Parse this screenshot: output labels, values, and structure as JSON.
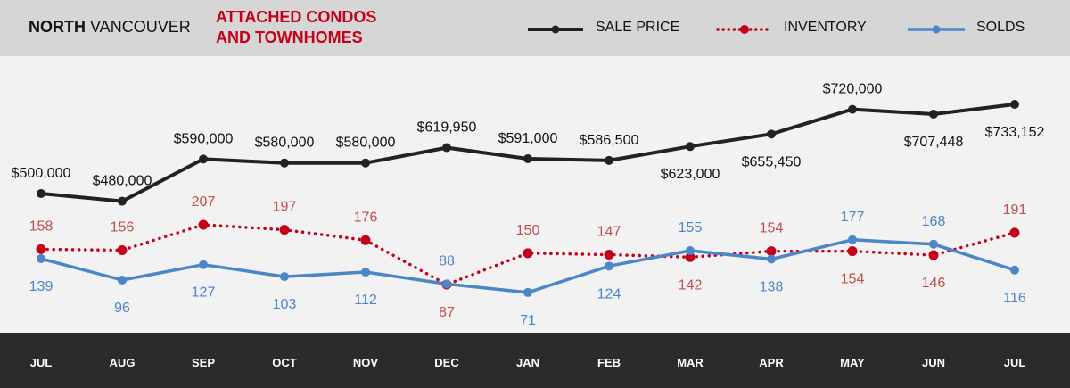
{
  "header": {
    "region_bold": "NORTH",
    "region_rest": "VANCOUVER",
    "subtitle_line1": "ATTACHED CONDOS",
    "subtitle_line2": "AND TOWNHOMES",
    "legend": {
      "sale_price": "SALE PRICE",
      "inventory": "INVENTORY",
      "solds": "SOLDS"
    }
  },
  "colors": {
    "sale_price": "#222222",
    "inventory": "#c4001a",
    "inventory_label": "#c0504d",
    "solds": "#4a86c8"
  },
  "chart_data": {
    "type": "line",
    "categories": [
      "JUL",
      "AUG",
      "SEP",
      "OCT",
      "NOV",
      "DEC",
      "JAN",
      "FEB",
      "MAR",
      "APR",
      "MAY",
      "JUN",
      "JUL"
    ],
    "series": [
      {
        "name": "SALE PRICE",
        "values": [
          500000,
          480000,
          590000,
          580000,
          580000,
          619950,
          591000,
          586500,
          623000,
          655450,
          720000,
          707448,
          733152
        ],
        "labels": [
          "$500,000",
          "$480,000",
          "$590,000",
          "$580,000",
          "$580,000",
          "$619,950",
          "$591,000",
          "$586,500",
          "$623,000",
          "$655,450",
          "$720,000",
          "$707,448",
          "$733,152"
        ]
      },
      {
        "name": "INVENTORY",
        "values": [
          158,
          156,
          207,
          197,
          176,
          87,
          150,
          147,
          142,
          154,
          154,
          146,
          191
        ]
      },
      {
        "name": "SOLDS",
        "values": [
          139,
          96,
          127,
          103,
          112,
          88,
          71,
          124,
          155,
          138,
          177,
          168,
          116
        ]
      }
    ]
  }
}
